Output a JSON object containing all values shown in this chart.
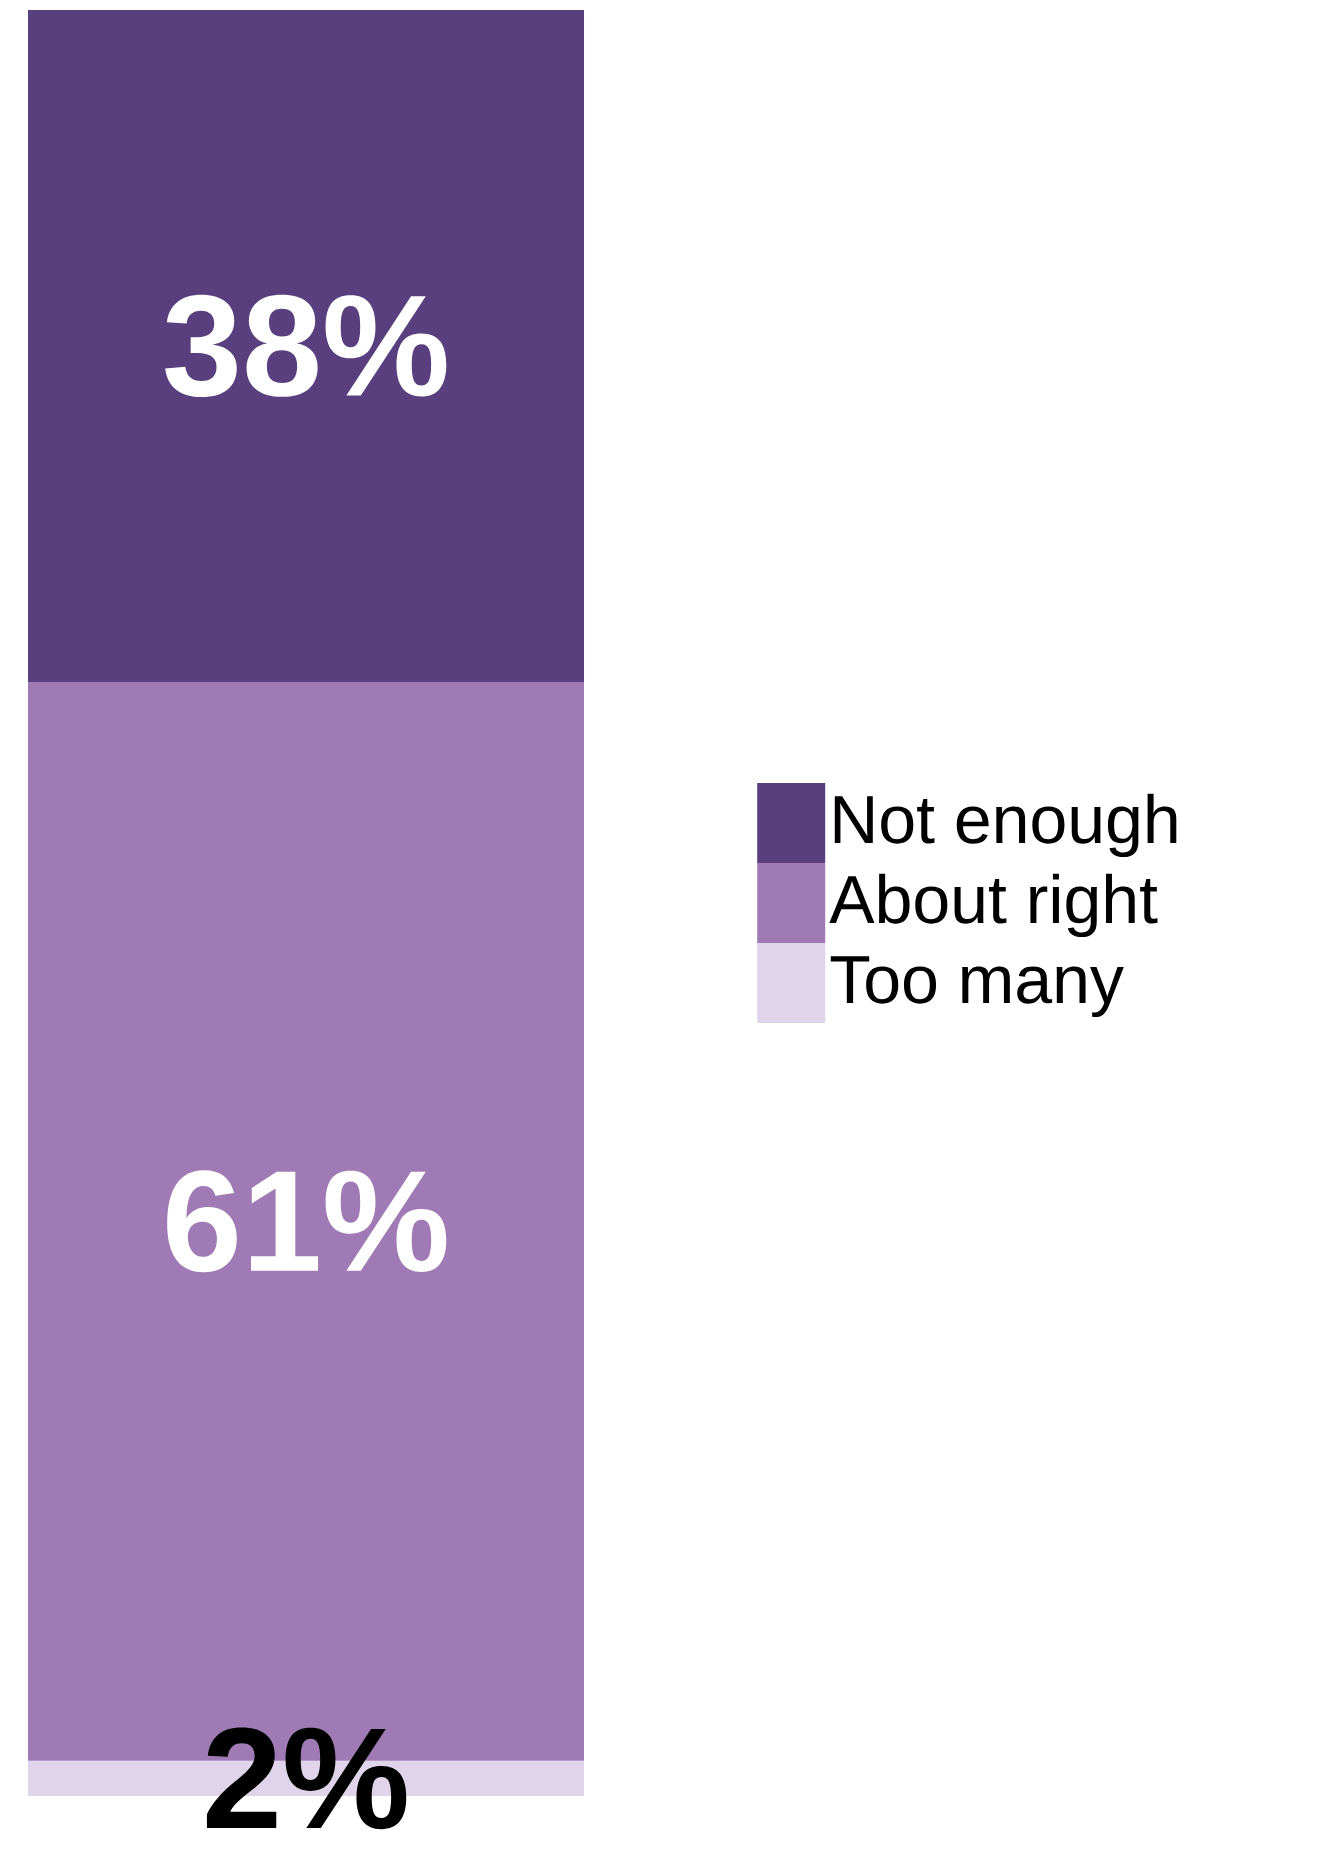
{
  "chart_data": {
    "type": "bar",
    "stacked": true,
    "categories": [
      null
    ],
    "legend": "right",
    "series": [
      {
        "name": "Too many",
        "color": "#e0d4ea",
        "values": [
          2
        ],
        "value_labels": [
          "2%"
        ]
      },
      {
        "name": "About right",
        "color": "#a07ab4",
        "values": [
          61
        ],
        "value_labels": [
          "61%"
        ]
      },
      {
        "name": "Not enough",
        "color": "#5a3f7e",
        "values": [
          38
        ],
        "value_labels": [
          "38%"
        ]
      }
    ]
  }
}
